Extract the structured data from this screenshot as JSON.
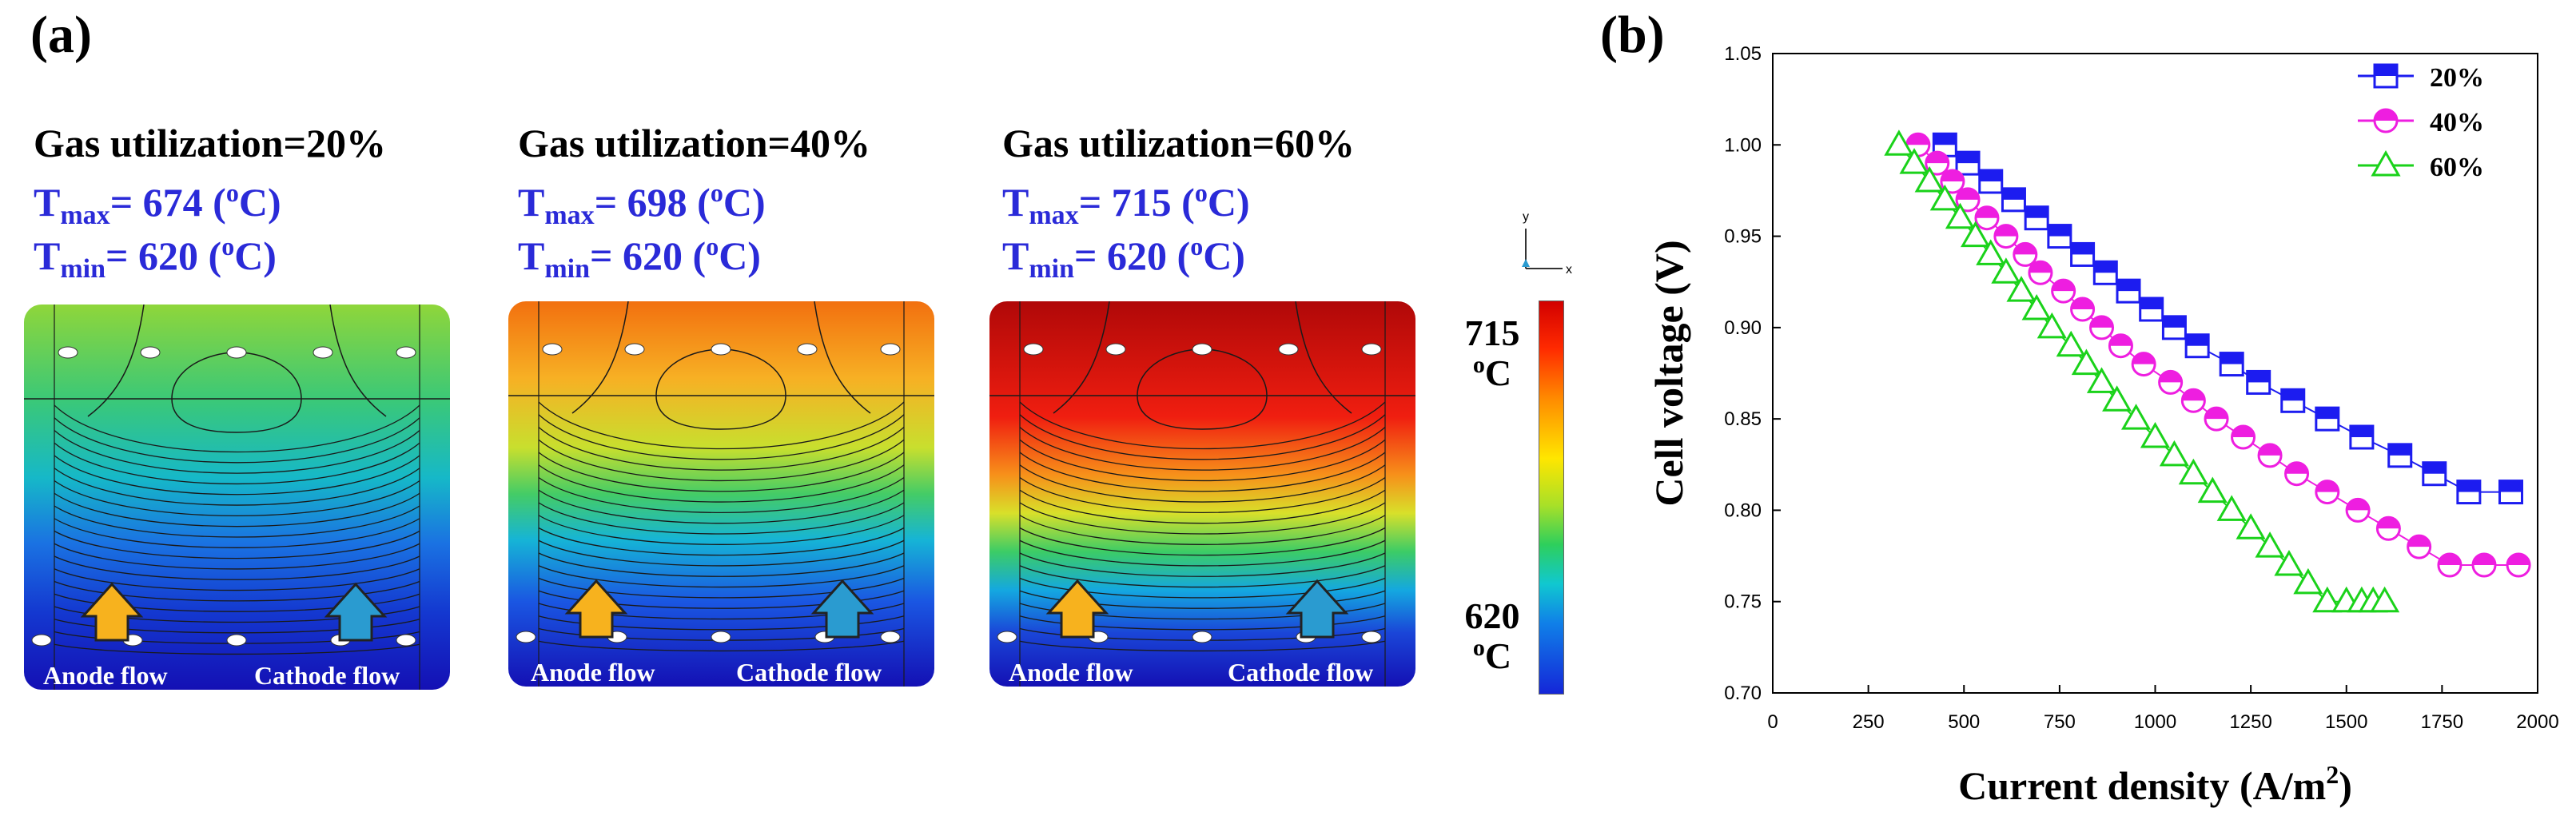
{
  "panel_a": {
    "label": "(a)",
    "maps": [
      {
        "title": "Gas utilization=20%",
        "tmax_prefix": "T",
        "tmax_sub": "max",
        "tmax_value": "= 674 (",
        "tmax_unit_sup": "o",
        "tmax_unit": "C)",
        "tmin_prefix": "T",
        "tmin_sub": "min",
        "tmin_value": "= 620 (",
        "tmin_unit_sup": "o",
        "tmin_unit": "C)",
        "anode": "Anode flow",
        "cathode": "Cathode flow",
        "top_color": "#8fd63a",
        "bottom_color": "#1410b4"
      },
      {
        "title": "Gas utilization=40%",
        "tmax_prefix": "T",
        "tmax_sub": "max",
        "tmax_value": "= 698 (",
        "tmax_unit_sup": "o",
        "tmax_unit": "C)",
        "tmin_prefix": "T",
        "tmin_sub": "min",
        "tmin_value": "= 620 (",
        "tmin_unit_sup": "o",
        "tmin_unit": "C)",
        "anode": "Anode flow",
        "cathode": "Cathode flow",
        "top_color": "#f2700f",
        "bottom_color": "#1410b4"
      },
      {
        "title": "Gas utilization=60%",
        "tmax_prefix": "T",
        "tmax_sub": "max",
        "tmax_value": "= 715 (",
        "tmax_unit_sup": "o",
        "tmax_unit": "C)",
        "tmin_prefix": "T",
        "tmin_sub": "min",
        "tmin_value": "= 620 (",
        "tmin_unit_sup": "o",
        "tmin_unit": "C)",
        "anode": "Anode flow",
        "cathode": "Cathode flow",
        "top_color": "#b00808",
        "bottom_color": "#1410b4"
      }
    ],
    "colorbar": {
      "max": "715",
      "min": "620",
      "unit_sup": "o",
      "unit": "C"
    },
    "axis_triad": {
      "y": "y",
      "x": "x"
    },
    "colors": {
      "anode_arrow": "#f7b21e",
      "cathode_arrow": "#2a9bd0",
      "contour_line": "#1a1a1a",
      "hole": "#ffffff"
    }
  },
  "panel_b": {
    "label": "(b)",
    "chart_data": {
      "type": "line",
      "xlabel": "Current density (A/m",
      "xlabel_sup": "2",
      "xlabel_end": ")",
      "ylabel": "Cell voltage (V)",
      "xlim": [
        0,
        2000
      ],
      "ylim": [
        0.7,
        1.05
      ],
      "xticks": [
        "0",
        "250",
        "500",
        "750",
        "1000",
        "1250",
        "1500",
        "1750",
        "2000"
      ],
      "yticks": [
        "0.70",
        "0.75",
        "0.80",
        "0.85",
        "0.90",
        "0.95",
        "1.00",
        "1.05"
      ],
      "legend_position": "top-right",
      "series": [
        {
          "name": "20%",
          "color": "#1c1cf0",
          "marker": "square",
          "x": [
            450,
            510,
            570,
            630,
            690,
            750,
            810,
            870,
            930,
            990,
            1050,
            1110,
            1200,
            1270,
            1360,
            1450,
            1540,
            1640,
            1730,
            1820,
            1930
          ],
          "y": [
            1.0,
            0.99,
            0.98,
            0.97,
            0.96,
            0.95,
            0.94,
            0.93,
            0.92,
            0.91,
            0.9,
            0.89,
            0.88,
            0.87,
            0.86,
            0.85,
            0.84,
            0.83,
            0.82,
            0.81,
            0.81
          ]
        },
        {
          "name": "40%",
          "color": "#ee1ee0",
          "marker": "circle",
          "x": [
            380,
            430,
            470,
            510,
            560,
            610,
            660,
            700,
            760,
            810,
            860,
            910,
            970,
            1040,
            1100,
            1160,
            1230,
            1300,
            1370,
            1450,
            1530,
            1610,
            1690,
            1770,
            1860,
            1950
          ],
          "y": [
            1.0,
            0.99,
            0.98,
            0.97,
            0.96,
            0.95,
            0.94,
            0.93,
            0.92,
            0.91,
            0.9,
            0.89,
            0.88,
            0.87,
            0.86,
            0.85,
            0.84,
            0.83,
            0.82,
            0.81,
            0.8,
            0.79,
            0.78,
            0.77,
            0.77,
            0.77
          ]
        },
        {
          "name": "60%",
          "color": "#1ad21a",
          "marker": "triangle",
          "x": [
            330,
            370,
            410,
            450,
            490,
            530,
            570,
            610,
            650,
            690,
            730,
            780,
            820,
            860,
            900,
            950,
            1000,
            1050,
            1100,
            1150,
            1200,
            1250,
            1300,
            1350,
            1400,
            1450,
            1500,
            1540,
            1570,
            1600
          ],
          "y": [
            1.0,
            0.99,
            0.98,
            0.97,
            0.96,
            0.95,
            0.94,
            0.93,
            0.92,
            0.91,
            0.9,
            0.89,
            0.88,
            0.87,
            0.86,
            0.85,
            0.84,
            0.83,
            0.82,
            0.81,
            0.8,
            0.79,
            0.78,
            0.77,
            0.76,
            0.75,
            0.75,
            0.75,
            0.75,
            0.75
          ]
        }
      ]
    }
  }
}
